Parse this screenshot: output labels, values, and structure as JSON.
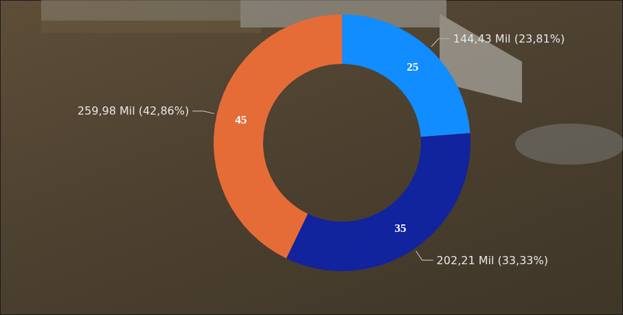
{
  "chart_data": {
    "type": "donut",
    "values": [
      25,
      35,
      45
    ],
    "colors": [
      "#118dff",
      "#12239e",
      "#e66c37"
    ],
    "data_labels": true,
    "annotations": [
      "144,43 Mil (23,81%)",
      "202,21 Mil (33,33%)",
      "259,98 Mil (42,86%)"
    ]
  }
}
